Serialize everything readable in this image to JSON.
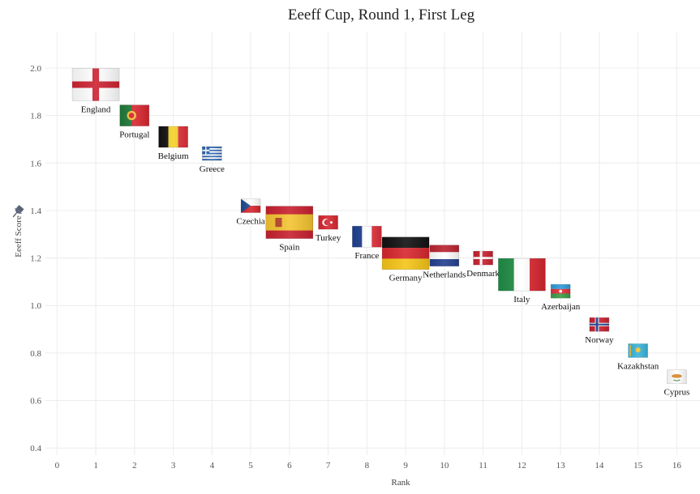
{
  "chart_data": {
    "type": "scatter",
    "title": "Eeeff Cup, Round 1, First Leg",
    "xlabel": "Rank",
    "ylabel": "Eeeff Score",
    "xlim": [
      -0.3,
      16.6
    ],
    "ylim": [
      0.37,
      2.15
    ],
    "xticks": [
      "0",
      "1",
      "2",
      "3",
      "4",
      "5",
      "6",
      "7",
      "8",
      "9",
      "10",
      "11",
      "12",
      "13",
      "14",
      "15",
      "16"
    ],
    "yticks": [
      "0.4",
      "0.6",
      "0.8",
      "1.0",
      "1.2",
      "1.4",
      "1.6",
      "1.8",
      "2.0"
    ],
    "grid": true,
    "points": [
      {
        "label": "England",
        "x": 1,
        "y": 1.93,
        "flag": "england",
        "size": "large"
      },
      {
        "label": "Portugal",
        "x": 2,
        "y": 1.8,
        "flag": "portugal",
        "size": "medium"
      },
      {
        "label": "Belgium",
        "x": 3,
        "y": 1.71,
        "flag": "belgium",
        "size": "medium"
      },
      {
        "label": "Greece",
        "x": 4,
        "y": 1.64,
        "flag": "greece",
        "size": "small"
      },
      {
        "label": "Czechia",
        "x": 5,
        "y": 1.42,
        "flag": "czechia",
        "size": "small"
      },
      {
        "label": "Spain",
        "x": 6,
        "y": 1.35,
        "flag": "spain",
        "size": "large"
      },
      {
        "label": "Turkey",
        "x": 7,
        "y": 1.35,
        "flag": "turkey",
        "size": "small"
      },
      {
        "label": "France",
        "x": 8,
        "y": 1.29,
        "flag": "france",
        "size": "medium"
      },
      {
        "label": "Germany",
        "x": 9,
        "y": 1.22,
        "flag": "germany",
        "size": "large"
      },
      {
        "label": "Netherlands",
        "x": 10,
        "y": 1.21,
        "flag": "netherlands",
        "size": "medium"
      },
      {
        "label": "Denmark",
        "x": 11,
        "y": 1.2,
        "flag": "denmark",
        "size": "small"
      },
      {
        "label": "Italy",
        "x": 12,
        "y": 1.13,
        "flag": "italy",
        "size": "large"
      },
      {
        "label": "Azerbaijan",
        "x": 13,
        "y": 1.06,
        "flag": "azerbaijan",
        "size": "small"
      },
      {
        "label": "Norway",
        "x": 14,
        "y": 0.92,
        "flag": "norway",
        "size": "small"
      },
      {
        "label": "Kazakhstan",
        "x": 15,
        "y": 0.81,
        "flag": "kazakhstan",
        "size": "small"
      },
      {
        "label": "Cyprus",
        "x": 16,
        "y": 0.7,
        "flag": "cyprus",
        "size": "small"
      }
    ]
  }
}
